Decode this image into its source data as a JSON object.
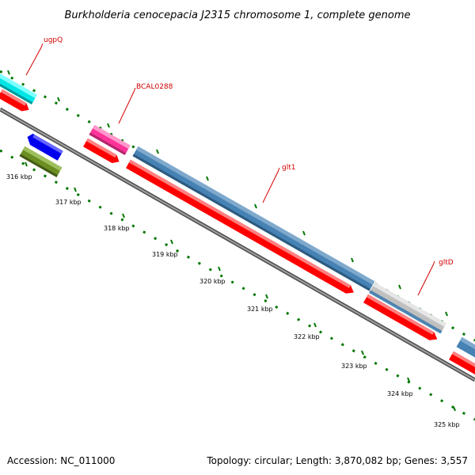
{
  "title": "Burkholderia cenocepacia J2315 chromosome 1, complete genome",
  "footer": {
    "accession": "Accession: NC_011000",
    "topology": "Topology: circular; Length: 3,870,082 bp; Genes: 3,557"
  },
  "ticks": [
    "316 kbp",
    "317 kbp",
    "318 kbp",
    "319 kbp",
    "320 kbp",
    "321 kbp",
    "322 kbp",
    "323 kbp",
    "324 kbp",
    "325 kbp"
  ],
  "gene_labels": [
    "ugpQ",
    "BCAL0288",
    "glt1",
    "gltD"
  ],
  "colors": {
    "cds": "#ff0000",
    "ugpQ": "#00ffff",
    "bcal0288": "#ff3399",
    "glt": "#4682b4",
    "gltD": "#c0c0c0",
    "blue_gene": "#0000ff",
    "olive_gene": "#6b8e23",
    "backbone": "#808080",
    "tick": "#007700",
    "label": "#d40000"
  }
}
